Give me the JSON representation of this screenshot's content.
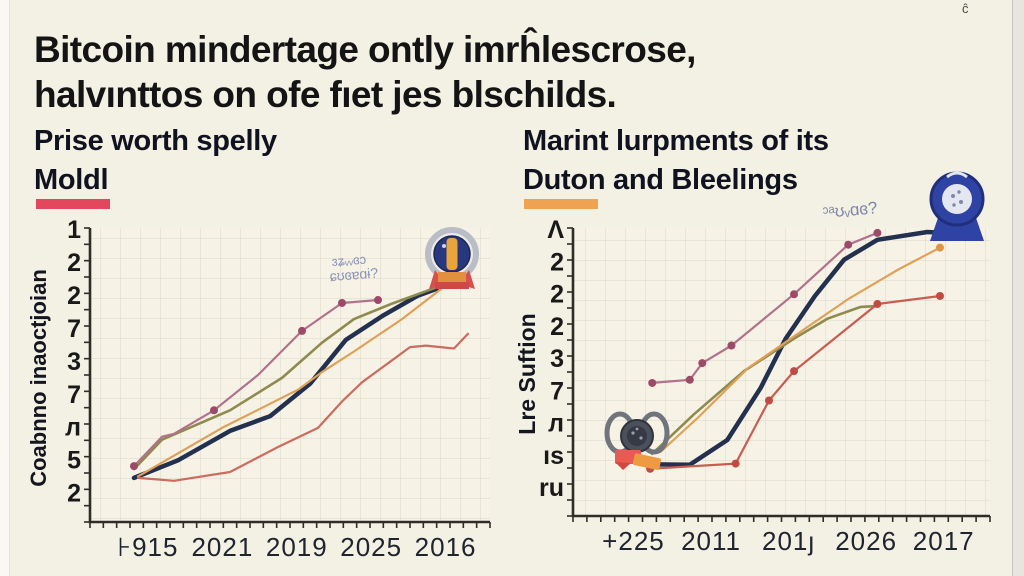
{
  "page": {
    "background": "#f3f0e4",
    "title": {
      "line1": "Bitcoin mindertage ontly imrĥlescrose,",
      "line2": "halvınttos on ofe fıet jes blschilds."
    },
    "stray_mark": "ĉ"
  },
  "panels": [
    {
      "heading_line1": "Prise worth spelly",
      "heading_line2": "Moldl",
      "accent_color": "#e2475d",
      "badge_note_line1": "ɜʑᵥᵥɞɔ",
      "badge_note_line2": "ɕʊɞɐɑɨ?"
    },
    {
      "heading_line1": "Marint lurpments of its",
      "heading_line2": "Duton and Bleelings",
      "accent_color": "#efa24f",
      "badge_note": "ᵓᵃʊᵥɑɞ?"
    }
  ],
  "chart_data": [
    {
      "type": "line",
      "title": "Prise worth spelly Moldl",
      "xlabel": "",
      "ylabel": "Coabnno inaoctjoian",
      "x_tick_labels": [
        "⊦915",
        "2021",
        "2019",
        "2025",
        "2016"
      ],
      "y_tick_labels": [
        "1",
        "2",
        "2",
        "7",
        "3",
        "7",
        "л",
        "5",
        "2"
      ],
      "grid": true,
      "legend": "none",
      "axis_note": "axis values are garbled glyphs; point coords normalized 0-1 (x: left-right, y: bottom-top)",
      "series": [
        {
          "name": "dark-navy-curve",
          "color": "#23304e",
          "width": 4.5,
          "points": [
            [
              0.11,
              0.15
            ],
            [
              0.22,
              0.21
            ],
            [
              0.35,
              0.31
            ],
            [
              0.45,
              0.36
            ],
            [
              0.55,
              0.47
            ],
            [
              0.64,
              0.62
            ],
            [
              0.73,
              0.7
            ],
            [
              0.82,
              0.77
            ],
            [
              0.9,
              0.81
            ]
          ]
        },
        {
          "name": "olive-line",
          "color": "#8f8a4d",
          "width": 2.6,
          "points": [
            [
              0.11,
              0.18
            ],
            [
              0.18,
              0.28
            ],
            [
              0.35,
              0.38
            ],
            [
              0.48,
              0.49
            ],
            [
              0.58,
              0.61
            ],
            [
              0.66,
              0.69
            ],
            [
              0.75,
              0.74
            ],
            [
              0.87,
              0.8
            ]
          ]
        },
        {
          "name": "rose-marker-line",
          "color": "#b2718c",
          "width": 2.2,
          "marker_color": "#9c4a67",
          "marker_indices": [
            0,
            3,
            5,
            6,
            7
          ],
          "points": [
            [
              0.11,
              0.19
            ],
            [
              0.18,
              0.29
            ],
            [
              0.21,
              0.3
            ],
            [
              0.31,
              0.38
            ],
            [
              0.42,
              0.5
            ],
            [
              0.53,
              0.65
            ],
            [
              0.63,
              0.745
            ],
            [
              0.72,
              0.755
            ]
          ]
        },
        {
          "name": "orange-line",
          "color": "#e0a058",
          "width": 2.2,
          "points": [
            [
              0.12,
              0.155
            ],
            [
              0.33,
              0.32
            ],
            [
              0.52,
              0.45
            ],
            [
              0.58,
              0.51
            ],
            [
              0.66,
              0.58
            ],
            [
              0.78,
              0.69
            ],
            [
              0.88,
              0.795
            ]
          ]
        },
        {
          "name": "salmon-line",
          "color": "#cc6b5e",
          "width": 2.2,
          "points": [
            [
              0.12,
              0.15
            ],
            [
              0.21,
              0.14
            ],
            [
              0.35,
              0.17
            ],
            [
              0.47,
              0.255
            ],
            [
              0.57,
              0.32
            ],
            [
              0.63,
              0.41
            ],
            [
              0.68,
              0.475
            ],
            [
              0.75,
              0.545
            ],
            [
              0.8,
              0.595
            ],
            [
              0.84,
              0.6
            ],
            [
              0.91,
              0.59
            ],
            [
              0.945,
              0.64
            ]
          ]
        }
      ]
    },
    {
      "type": "line",
      "title": "Marint lurpments of its Duton and Bleelings",
      "xlabel": "",
      "ylabel": "Lre Suftion",
      "x_tick_labels": [
        "+225",
        "2011",
        "201ȷ",
        "2026",
        "2017"
      ],
      "y_tick_labels": [
        "Λ",
        "2",
        "2",
        "2",
        "3",
        "7",
        "л",
        "ıs",
        "ru"
      ],
      "grid": true,
      "legend": "none",
      "axis_note": "axis values are garbled glyphs; point coords normalized 0-1 (x: left-right, y: bottom-top)",
      "series": [
        {
          "name": "dark-navy-curve",
          "color": "#23304e",
          "width": 4.5,
          "points": [
            [
              0.17,
              0.18
            ],
            [
              0.28,
              0.178
            ],
            [
              0.37,
              0.264
            ],
            [
              0.45,
              0.445
            ],
            [
              0.51,
              0.616
            ],
            [
              0.58,
              0.764
            ],
            [
              0.65,
              0.89
            ],
            [
              0.73,
              0.959
            ],
            [
              0.85,
              0.986
            ],
            [
              0.89,
              0.983
            ]
          ]
        },
        {
          "name": "rose-marker-line",
          "color": "#b2718c",
          "width": 2.2,
          "marker_color": "#9c4a67",
          "marker_indices": "all",
          "points": [
            [
              0.19,
              0.462
            ],
            [
              0.28,
              0.473
            ],
            [
              0.31,
              0.531
            ],
            [
              0.38,
              0.592
            ],
            [
              0.53,
              0.77
            ],
            [
              0.66,
              0.942
            ],
            [
              0.73,
              0.983
            ]
          ]
        },
        {
          "name": "olive-line",
          "color": "#8f8a4d",
          "width": 2.6,
          "points": [
            [
              0.19,
              0.216
            ],
            [
              0.29,
              0.353
            ],
            [
              0.41,
              0.503
            ],
            [
              0.53,
              0.616
            ],
            [
              0.61,
              0.685
            ],
            [
              0.69,
              0.726
            ],
            [
              0.73,
              0.729
            ]
          ]
        },
        {
          "name": "orange-line",
          "color": "#e0a058",
          "width": 2.2,
          "marker_color": "#e0944a",
          "marker_indices": [
            6
          ],
          "points": [
            [
              0.21,
              0.223
            ],
            [
              0.3,
              0.342
            ],
            [
              0.42,
              0.514
            ],
            [
              0.54,
              0.634
            ],
            [
              0.66,
              0.753
            ],
            [
              0.78,
              0.856
            ],
            [
              0.88,
              0.932
            ]
          ]
        },
        {
          "name": "red-marker-line",
          "color": "#c95c50",
          "width": 2.2,
          "marker_color": "#bf4b42",
          "marker_indices": "all",
          "points": [
            [
              0.185,
              0.164
            ],
            [
              0.39,
              0.182
            ],
            [
              0.47,
              0.401
            ],
            [
              0.53,
              0.503
            ],
            [
              0.73,
              0.736
            ],
            [
              0.88,
              0.764
            ]
          ]
        }
      ]
    }
  ]
}
